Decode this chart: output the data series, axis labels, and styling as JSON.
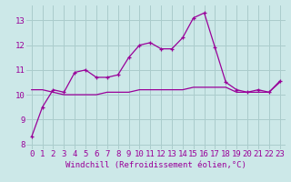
{
  "x": [
    0,
    1,
    2,
    3,
    4,
    5,
    6,
    7,
    8,
    9,
    10,
    11,
    12,
    13,
    14,
    15,
    16,
    17,
    18,
    19,
    20,
    21,
    22,
    23
  ],
  "y_jagged": [
    8.3,
    9.5,
    10.2,
    10.1,
    10.9,
    11.0,
    10.7,
    10.7,
    10.8,
    11.5,
    12.0,
    12.1,
    11.85,
    11.85,
    12.3,
    13.1,
    13.3,
    11.9,
    10.5,
    10.2,
    10.1,
    10.2,
    10.1,
    10.55
  ],
  "y_flat": [
    10.2,
    10.2,
    10.1,
    10.0,
    10.0,
    10.0,
    10.0,
    10.1,
    10.1,
    10.1,
    10.2,
    10.2,
    10.2,
    10.2,
    10.2,
    10.3,
    10.3,
    10.3,
    10.3,
    10.1,
    10.1,
    10.1,
    10.1,
    10.5
  ],
  "line_color": "#990099",
  "bg_color": "#cce8e8",
  "grid_color": "#aacccc",
  "xlabel": "Windchill (Refroidissement éolien,°C)",
  "ylim": [
    7.8,
    13.6
  ],
  "xlim": [
    -0.5,
    23.5
  ],
  "yticks": [
    8,
    9,
    10,
    11,
    12,
    13
  ],
  "xticks": [
    0,
    1,
    2,
    3,
    4,
    5,
    6,
    7,
    8,
    9,
    10,
    11,
    12,
    13,
    14,
    15,
    16,
    17,
    18,
    19,
    20,
    21,
    22,
    23
  ],
  "font_size_axis": 6.5,
  "font_size_ticks": 6.5,
  "marker": "+"
}
